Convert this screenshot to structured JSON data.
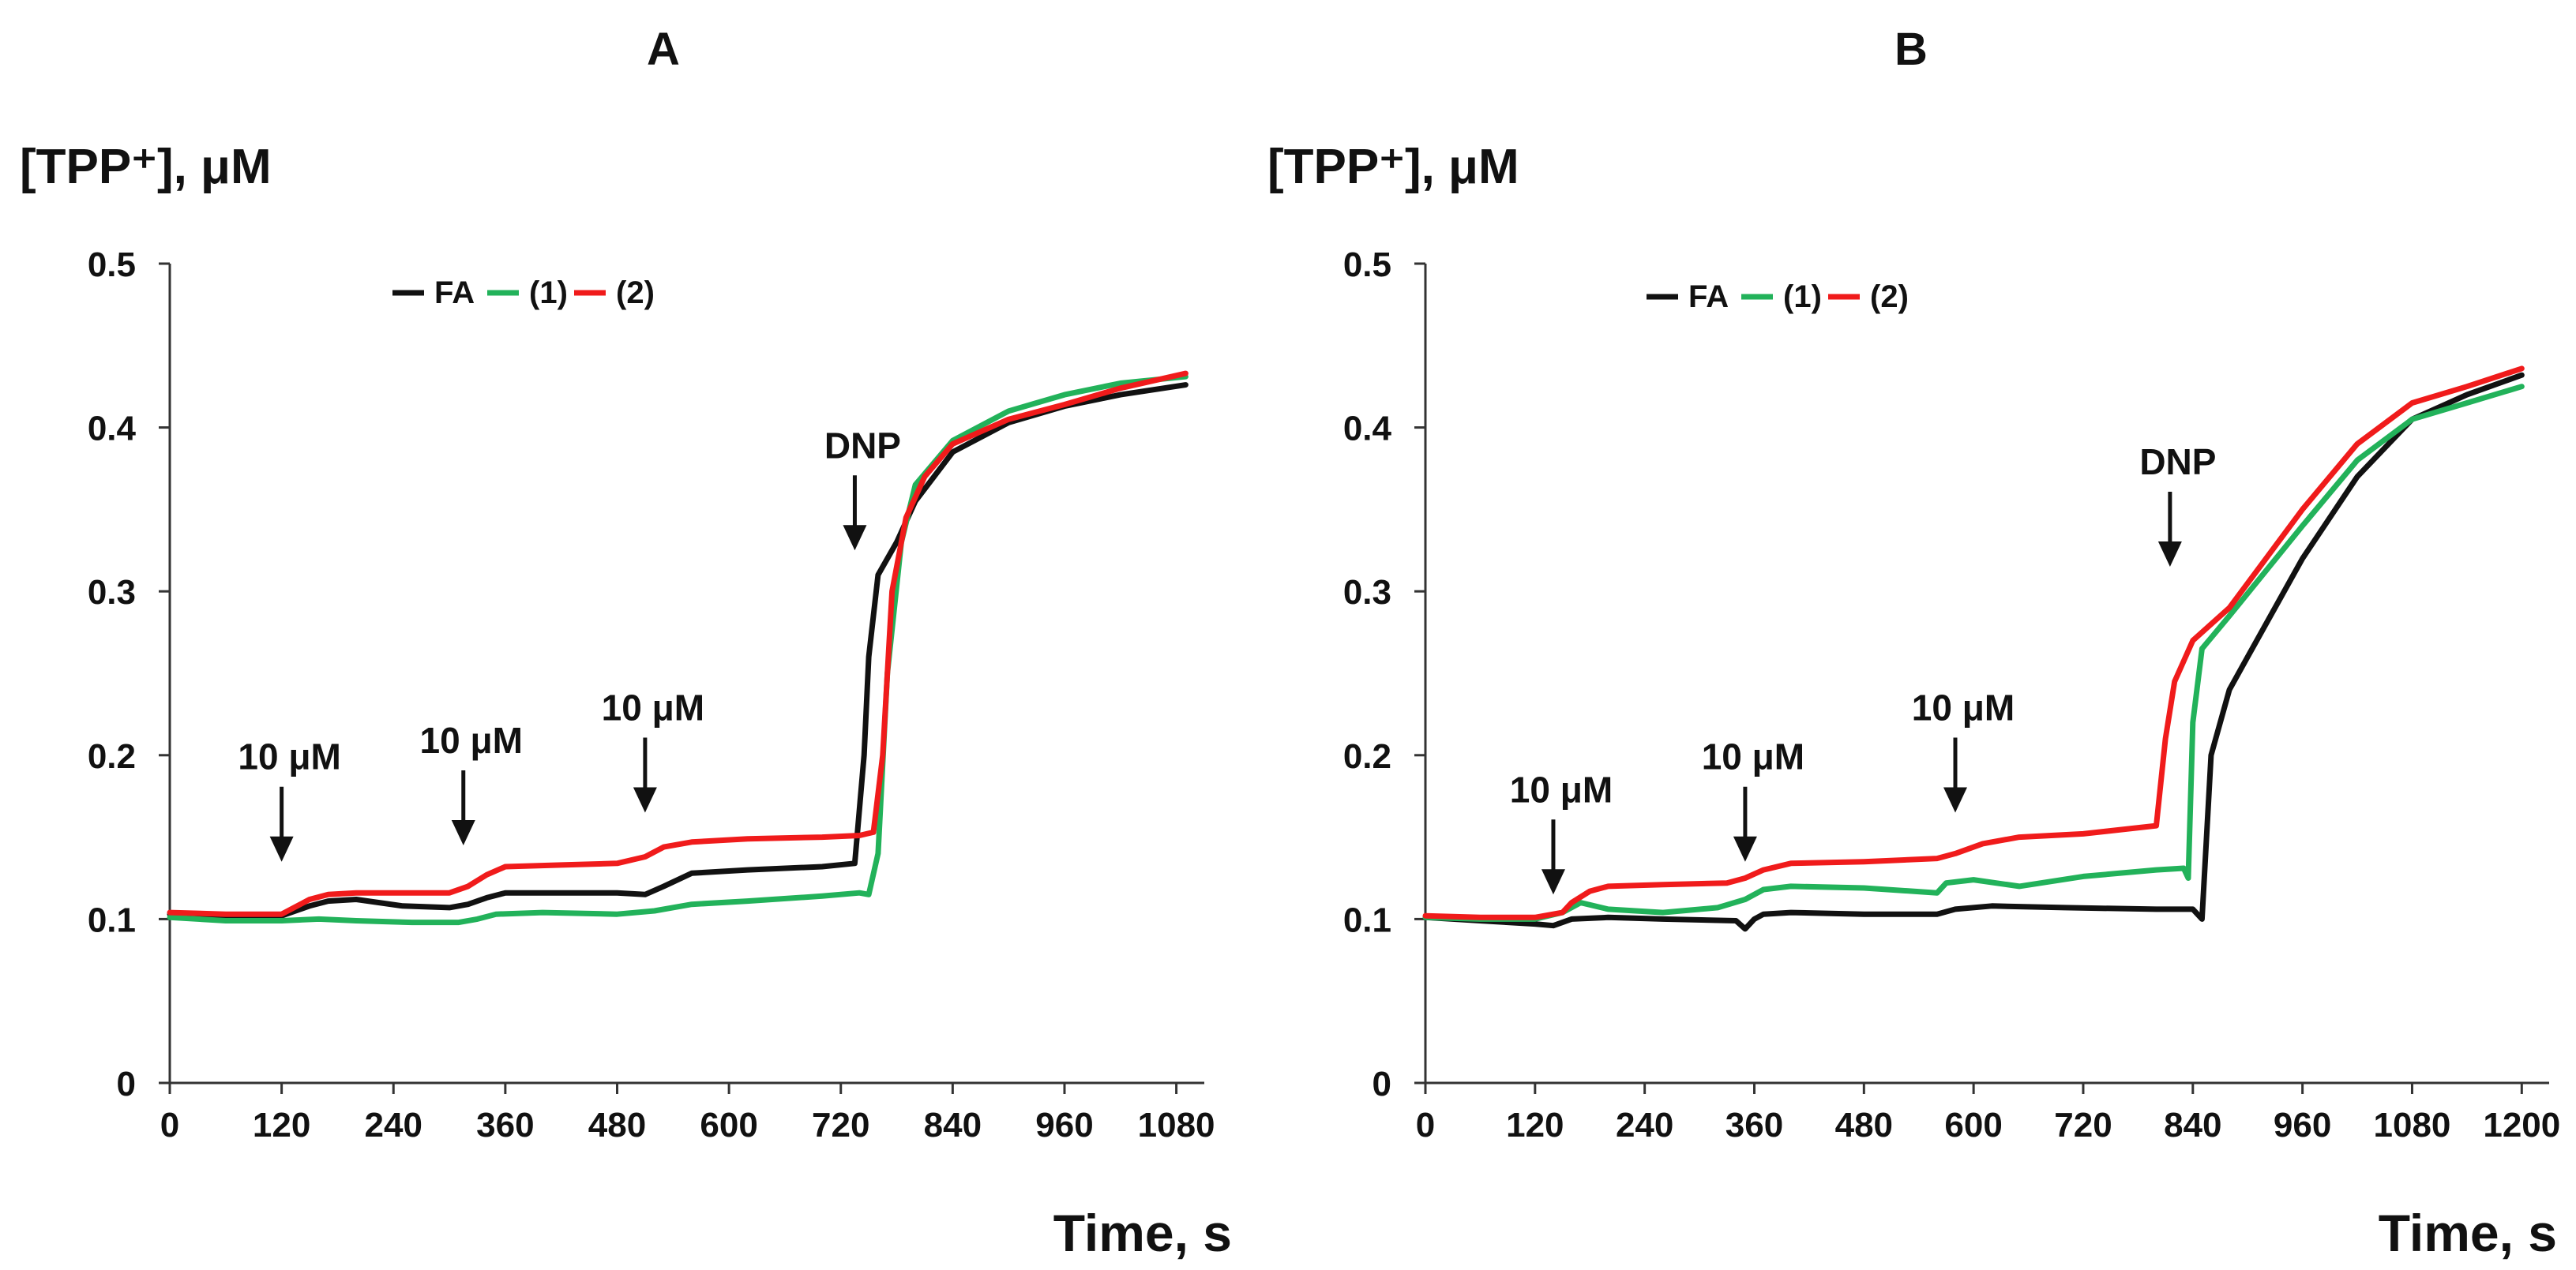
{
  "colors": {
    "FA": "#111111",
    "1": "#22b25a",
    "2": "#f01b1b",
    "axis": "#333333"
  },
  "chart_data": [
    {
      "type": "line",
      "panel_label": "A",
      "ylabel": "[TPP⁺], μM",
      "xlabel": "Time, s",
      "xlim": [
        0,
        1110
      ],
      "ylim": [
        0,
        0.5
      ],
      "xticks": [
        0,
        120,
        240,
        360,
        480,
        600,
        720,
        840,
        960,
        1080
      ],
      "yticks": [
        0,
        0.1,
        0.2,
        0.3,
        0.4,
        0.5
      ],
      "ytick_labels": [
        "0",
        "0.1",
        "0.2",
        "0.3",
        "0.4",
        "0.5"
      ],
      "legend": [
        "FA",
        "(1)",
        "(2)"
      ],
      "annotations": [
        {
          "text": "10 μM",
          "x": 120,
          "y": 0.135
        },
        {
          "text": "10 μM",
          "x": 315,
          "y": 0.145
        },
        {
          "text": "10 μM",
          "x": 510,
          "y": 0.165
        },
        {
          "text": "DNP",
          "x": 735,
          "y": 0.325
        }
      ],
      "series": [
        {
          "name": "FA",
          "color_key": "FA",
          "x": [
            0,
            60,
            120,
            150,
            170,
            200,
            250,
            300,
            320,
            340,
            360,
            420,
            480,
            510,
            530,
            560,
            620,
            700,
            735,
            745,
            750,
            760,
            780,
            800,
            840,
            900,
            960,
            1020,
            1090
          ],
          "y": [
            0.103,
            0.102,
            0.102,
            0.108,
            0.111,
            0.112,
            0.108,
            0.107,
            0.109,
            0.113,
            0.116,
            0.116,
            0.116,
            0.115,
            0.12,
            0.128,
            0.13,
            0.132,
            0.134,
            0.2,
            0.26,
            0.31,
            0.33,
            0.355,
            0.385,
            0.403,
            0.413,
            0.42,
            0.426
          ]
        },
        {
          "name": "(1)",
          "color_key": "1",
          "x": [
            0,
            60,
            120,
            160,
            200,
            260,
            310,
            330,
            350,
            400,
            480,
            520,
            560,
            620,
            700,
            740,
            750,
            760,
            770,
            785,
            800,
            840,
            900,
            960,
            1020,
            1090
          ],
          "y": [
            0.101,
            0.099,
            0.099,
            0.1,
            0.099,
            0.098,
            0.098,
            0.1,
            0.103,
            0.104,
            0.103,
            0.105,
            0.109,
            0.111,
            0.114,
            0.116,
            0.115,
            0.14,
            0.25,
            0.33,
            0.365,
            0.392,
            0.41,
            0.42,
            0.427,
            0.431
          ]
        },
        {
          "name": "(2)",
          "color_key": "2",
          "x": [
            0,
            60,
            120,
            150,
            170,
            200,
            260,
            300,
            320,
            340,
            360,
            420,
            480,
            510,
            530,
            560,
            620,
            700,
            740,
            755,
            765,
            775,
            790,
            810,
            840,
            900,
            960,
            1020,
            1090
          ],
          "y": [
            0.104,
            0.103,
            0.103,
            0.112,
            0.115,
            0.116,
            0.116,
            0.116,
            0.12,
            0.127,
            0.132,
            0.133,
            0.134,
            0.138,
            0.144,
            0.147,
            0.149,
            0.15,
            0.151,
            0.153,
            0.2,
            0.3,
            0.345,
            0.37,
            0.39,
            0.405,
            0.414,
            0.424,
            0.433
          ]
        }
      ]
    },
    {
      "type": "line",
      "panel_label": "B",
      "ylabel": "[TPP⁺], μM",
      "xlabel": "Time, s",
      "xlim": [
        0,
        1230
      ],
      "ylim": [
        0,
        0.5
      ],
      "xticks": [
        0,
        120,
        240,
        360,
        480,
        600,
        720,
        840,
        960,
        1080,
        1200
      ],
      "yticks": [
        0,
        0.1,
        0.2,
        0.3,
        0.4,
        0.5
      ],
      "ytick_labels": [
        "0",
        "0.1",
        "0.2",
        "0.3",
        "0.4",
        "0.5"
      ],
      "legend": [
        "FA",
        "(1)",
        "(2)"
      ],
      "annotations": [
        {
          "text": "10 μM",
          "x": 140,
          "y": 0.115
        },
        {
          "text": "10 μM",
          "x": 350,
          "y": 0.135
        },
        {
          "text": "10 μM",
          "x": 580,
          "y": 0.165
        },
        {
          "text": "DNP",
          "x": 815,
          "y": 0.315
        }
      ],
      "series": [
        {
          "name": "FA",
          "color_key": "FA",
          "x": [
            0,
            60,
            120,
            140,
            160,
            200,
            260,
            340,
            350,
            360,
            370,
            400,
            480,
            560,
            580,
            620,
            700,
            800,
            840,
            850,
            860,
            880,
            900,
            960,
            1020,
            1080,
            1140,
            1200
          ],
          "y": [
            0.101,
            0.099,
            0.097,
            0.096,
            0.1,
            0.101,
            0.1,
            0.099,
            0.094,
            0.1,
            0.103,
            0.104,
            0.103,
            0.103,
            0.106,
            0.108,
            0.107,
            0.106,
            0.106,
            0.1,
            0.2,
            0.24,
            0.26,
            0.32,
            0.37,
            0.405,
            0.42,
            0.432
          ]
        },
        {
          "name": "(1)",
          "color_key": "1",
          "x": [
            0,
            60,
            120,
            150,
            170,
            200,
            260,
            320,
            350,
            370,
            400,
            480,
            560,
            570,
            600,
            650,
            720,
            800,
            830,
            835,
            840,
            850,
            880,
            960,
            1020,
            1080,
            1140,
            1200
          ],
          "y": [
            0.101,
            0.1,
            0.1,
            0.104,
            0.11,
            0.106,
            0.104,
            0.107,
            0.112,
            0.118,
            0.12,
            0.119,
            0.116,
            0.122,
            0.124,
            0.12,
            0.126,
            0.13,
            0.131,
            0.125,
            0.22,
            0.265,
            0.285,
            0.34,
            0.38,
            0.405,
            0.415,
            0.425
          ]
        },
        {
          "name": "(2)",
          "color_key": "2",
          "x": [
            0,
            60,
            120,
            150,
            160,
            180,
            200,
            260,
            330,
            350,
            370,
            400,
            480,
            560,
            580,
            610,
            650,
            720,
            800,
            810,
            820,
            840,
            880,
            920,
            960,
            1020,
            1080,
            1140,
            1200
          ],
          "y": [
            0.102,
            0.101,
            0.101,
            0.104,
            0.11,
            0.117,
            0.12,
            0.121,
            0.122,
            0.125,
            0.13,
            0.134,
            0.135,
            0.137,
            0.14,
            0.146,
            0.15,
            0.152,
            0.157,
            0.21,
            0.245,
            0.27,
            0.29,
            0.32,
            0.35,
            0.39,
            0.415,
            0.425,
            0.436
          ]
        }
      ]
    }
  ]
}
